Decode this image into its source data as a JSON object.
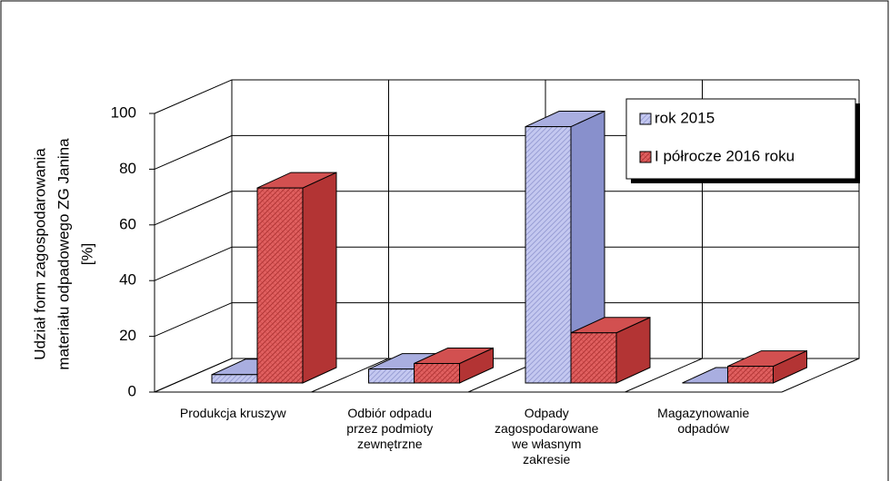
{
  "chart_data": {
    "type": "bar3d",
    "y_label": [
      "Udział form zagospodarowania",
      "materiału odpadowego ZG Janina",
      "[%]"
    ],
    "categories": [
      "Produkcja kruszyw",
      "Odbiór odpadu przez podmioty zewnętrzne",
      "Odpady zagospodarowane we własnym zakresie",
      "Magazynowanie odpadów"
    ],
    "series": [
      {
        "name": "rok 2015",
        "color": "#b4b9e6",
        "values": [
          3,
          5,
          92,
          0
        ]
      },
      {
        "name": "I półrocze 2016 roku",
        "color": "#d64a4a",
        "values": [
          70,
          7,
          18,
          6
        ]
      }
    ],
    "ylim": [
      0,
      100
    ],
    "yticks": [
      0,
      20,
      40,
      60,
      80,
      100
    ],
    "grid": true
  }
}
